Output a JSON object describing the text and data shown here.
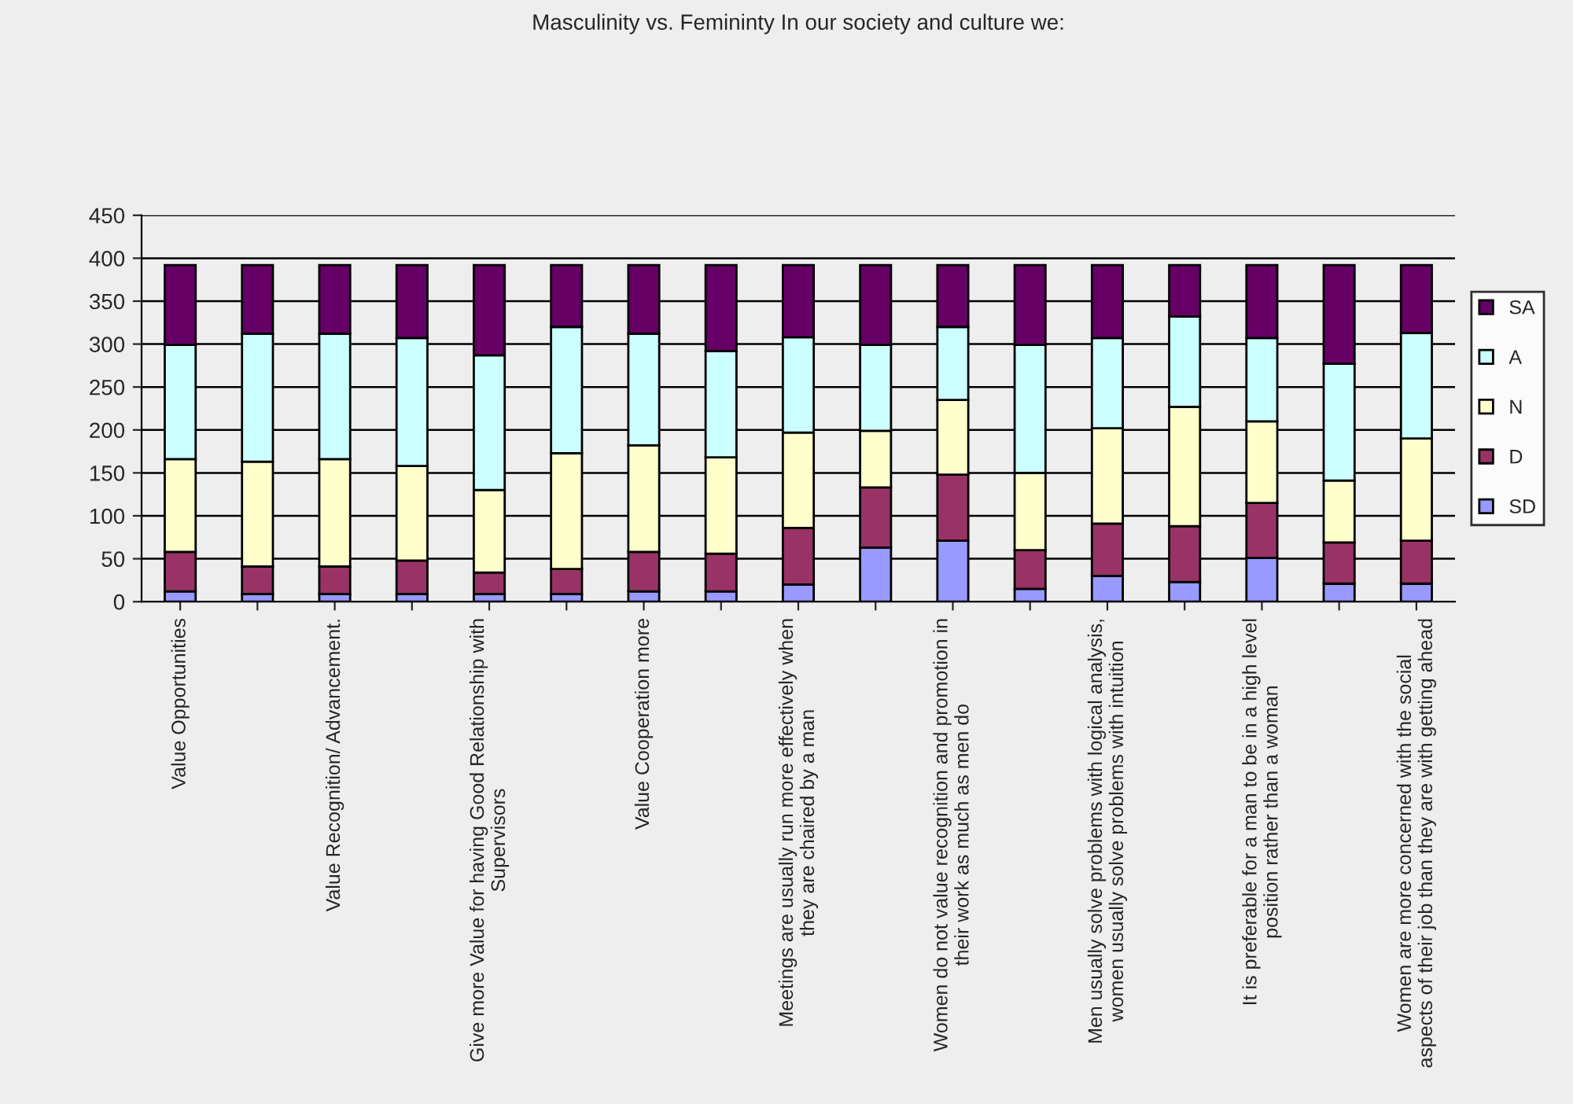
{
  "chart_data": {
    "type": "bar",
    "stacked": true,
    "title": "Masculinity vs. Femininty In our society and culture we:",
    "categories": [
      "Value Opportunities",
      null,
      "Value Recognition/ Advancement.",
      null,
      "Give more Value for having Good Relationship with\nSupervisors",
      null,
      "Value Cooperation more",
      null,
      "Meetings are usually run more effectively when\nthey are chaired by a man",
      null,
      "Women do not value recognition and promotion in\ntheir work as much as men do",
      null,
      "Men usually solve problems with logical analysis,\nwomen usually solve problems with intuition",
      null,
      "It is preferable for a man to be in a high level\nposition rather than a woman",
      null,
      "Women are more concerned with the social\naspects of their job than they are with getting ahead"
    ],
    "series": [
      {
        "name": "SD",
        "color": "#9999ff",
        "values": [
          12,
          9,
          9,
          9,
          9,
          9,
          12,
          12,
          20,
          63,
          71,
          15,
          30,
          23,
          51,
          21,
          21
        ]
      },
      {
        "name": "D",
        "color": "#993366",
        "values": [
          46,
          32,
          32,
          39,
          25,
          29,
          46,
          44,
          66,
          70,
          77,
          45,
          61,
          65,
          64,
          48,
          50
        ]
      },
      {
        "name": "N",
        "color": "#ffffcc",
        "values": [
          108,
          122,
          125,
          110,
          96,
          135,
          124,
          112,
          111,
          66,
          87,
          90,
          111,
          139,
          95,
          72,
          119
        ]
      },
      {
        "name": "A",
        "color": "#ccffff",
        "values": [
          133,
          149,
          146,
          149,
          157,
          147,
          130,
          124,
          111,
          100,
          85,
          149,
          105,
          105,
          97,
          136,
          123
        ]
      },
      {
        "name": "SA",
        "color": "#660066",
        "values": [
          93,
          80,
          80,
          85,
          105,
          72,
          80,
          100,
          84,
          93,
          72,
          93,
          85,
          60,
          85,
          115,
          79
        ]
      }
    ],
    "ylim": [
      0,
      450
    ],
    "yticks": [
      0,
      50,
      100,
      150,
      200,
      250,
      300,
      350,
      400,
      450
    ],
    "grid": "y",
    "legend": "right"
  }
}
